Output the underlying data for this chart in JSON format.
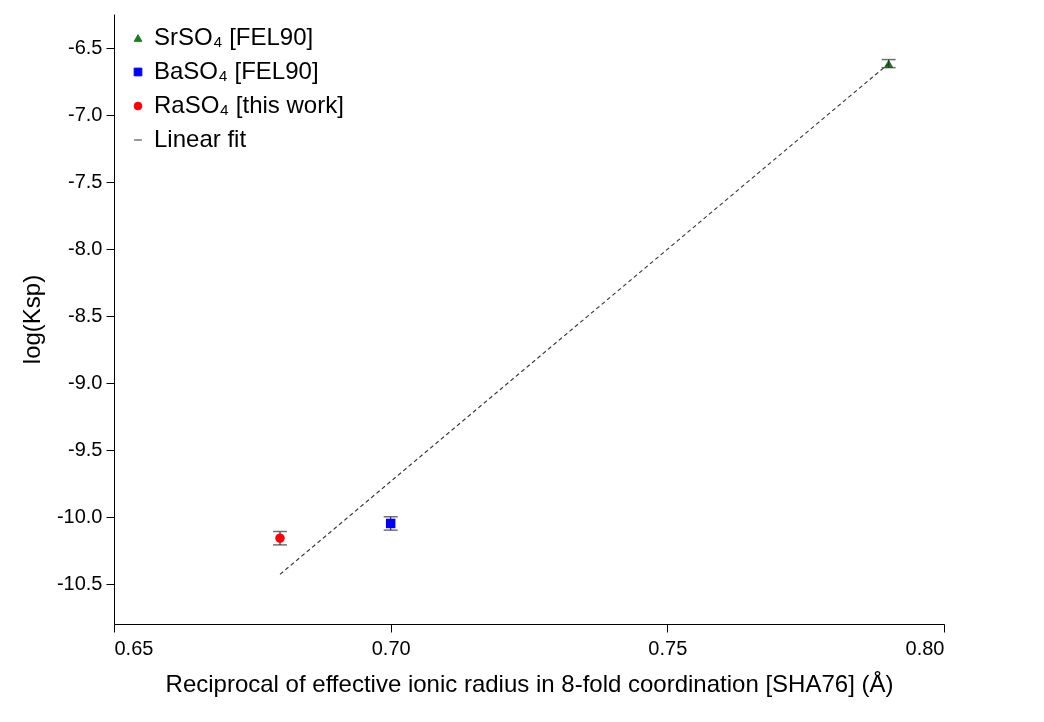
{
  "chart_data": {
    "type": "scatter",
    "xlabel": "Reciprocal of effective ionic radius in 8-fold coordination [SHA76] (Å)",
    "ylabel": "log(Ksp)",
    "xlim": [
      0.65,
      0.8
    ],
    "ylim": [
      -10.8,
      -6.25
    ],
    "xticks": [
      0.65,
      {
        "value": 0.7,
        "label": "0.70"
      },
      0.75,
      {
        "value": 0.8,
        "label": "0.80"
      }
    ],
    "yticks": [
      -10.5,
      {
        "value": -10,
        "label": "-10.0"
      },
      -9.5,
      {
        "value": -9,
        "label": "-9.0"
      },
      -8.5,
      {
        "value": -8,
        "label": "-8.0"
      },
      -7.5,
      {
        "value": -7,
        "label": "-7.0"
      },
      -6.5
    ],
    "grid": false,
    "legend": "top left",
    "series": [
      {
        "name": "SrSO₄ [FEL90]",
        "marker": "triangle",
        "color": "#1a7f1a",
        "x": [
          0.79
        ],
        "values": [
          -6.62
        ],
        "errors": [
          0.03
        ]
      },
      {
        "name": "BaSO₄ [FEL90]",
        "marker": "square",
        "color": "#0000ff",
        "x": [
          0.7
        ],
        "values": [
          -10.05
        ],
        "errors": [
          0.05
        ]
      },
      {
        "name": "RaSO₄ [this work]",
        "marker": "circle",
        "color": "#ff0000",
        "x": [
          0.68
        ],
        "values": [
          -10.16
        ],
        "errors": [
          0.05
        ]
      },
      {
        "name": "Linear fit",
        "type": "line",
        "line_style": "dashed",
        "marker": "none",
        "color": "#333333",
        "x": [
          0.68,
          0.79
        ],
        "values": [
          -10.43,
          -6.62
        ]
      }
    ]
  }
}
